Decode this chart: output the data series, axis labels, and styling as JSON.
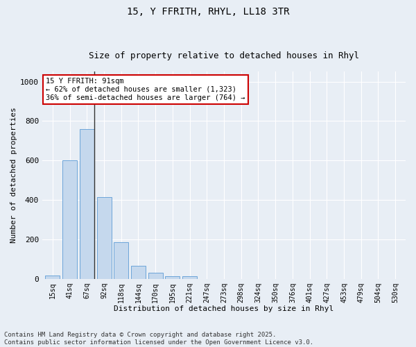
{
  "title1": "15, Y FFRITH, RHYL, LL18 3TR",
  "title2": "Size of property relative to detached houses in Rhyl",
  "xlabel": "Distribution of detached houses by size in Rhyl",
  "ylabel": "Number of detached properties",
  "categories": [
    "15sq",
    "41sq",
    "67sq",
    "92sq",
    "118sq",
    "144sq",
    "170sq",
    "195sq",
    "221sq",
    "247sq",
    "273sq",
    "298sq",
    "324sq",
    "350sq",
    "376sq",
    "401sq",
    "427sq",
    "453sq",
    "479sq",
    "504sq",
    "530sq"
  ],
  "values": [
    15,
    600,
    760,
    415,
    185,
    65,
    30,
    13,
    13,
    0,
    0,
    0,
    0,
    0,
    0,
    0,
    0,
    0,
    0,
    0,
    0
  ],
  "bar_color": "#c5d8ed",
  "bar_edge_color": "#5b9bd5",
  "vline_color": "#333333",
  "annotation_text": "15 Y FFRITH: 91sqm\n← 62% of detached houses are smaller (1,323)\n36% of semi-detached houses are larger (764) →",
  "annotation_box_facecolor": "#ffffff",
  "annotation_box_edgecolor": "#cc0000",
  "ylim": [
    0,
    1050
  ],
  "yticks": [
    0,
    200,
    400,
    600,
    800,
    1000
  ],
  "background_color": "#e8eef5",
  "grid_color": "#ffffff",
  "footer1": "Contains HM Land Registry data © Crown copyright and database right 2025.",
  "footer2": "Contains public sector information licensed under the Open Government Licence v3.0.",
  "title_fontsize": 10,
  "subtitle_fontsize": 9,
  "axis_label_fontsize": 8,
  "tick_fontsize": 7,
  "annotation_fontsize": 7.5,
  "footer_fontsize": 6.5
}
